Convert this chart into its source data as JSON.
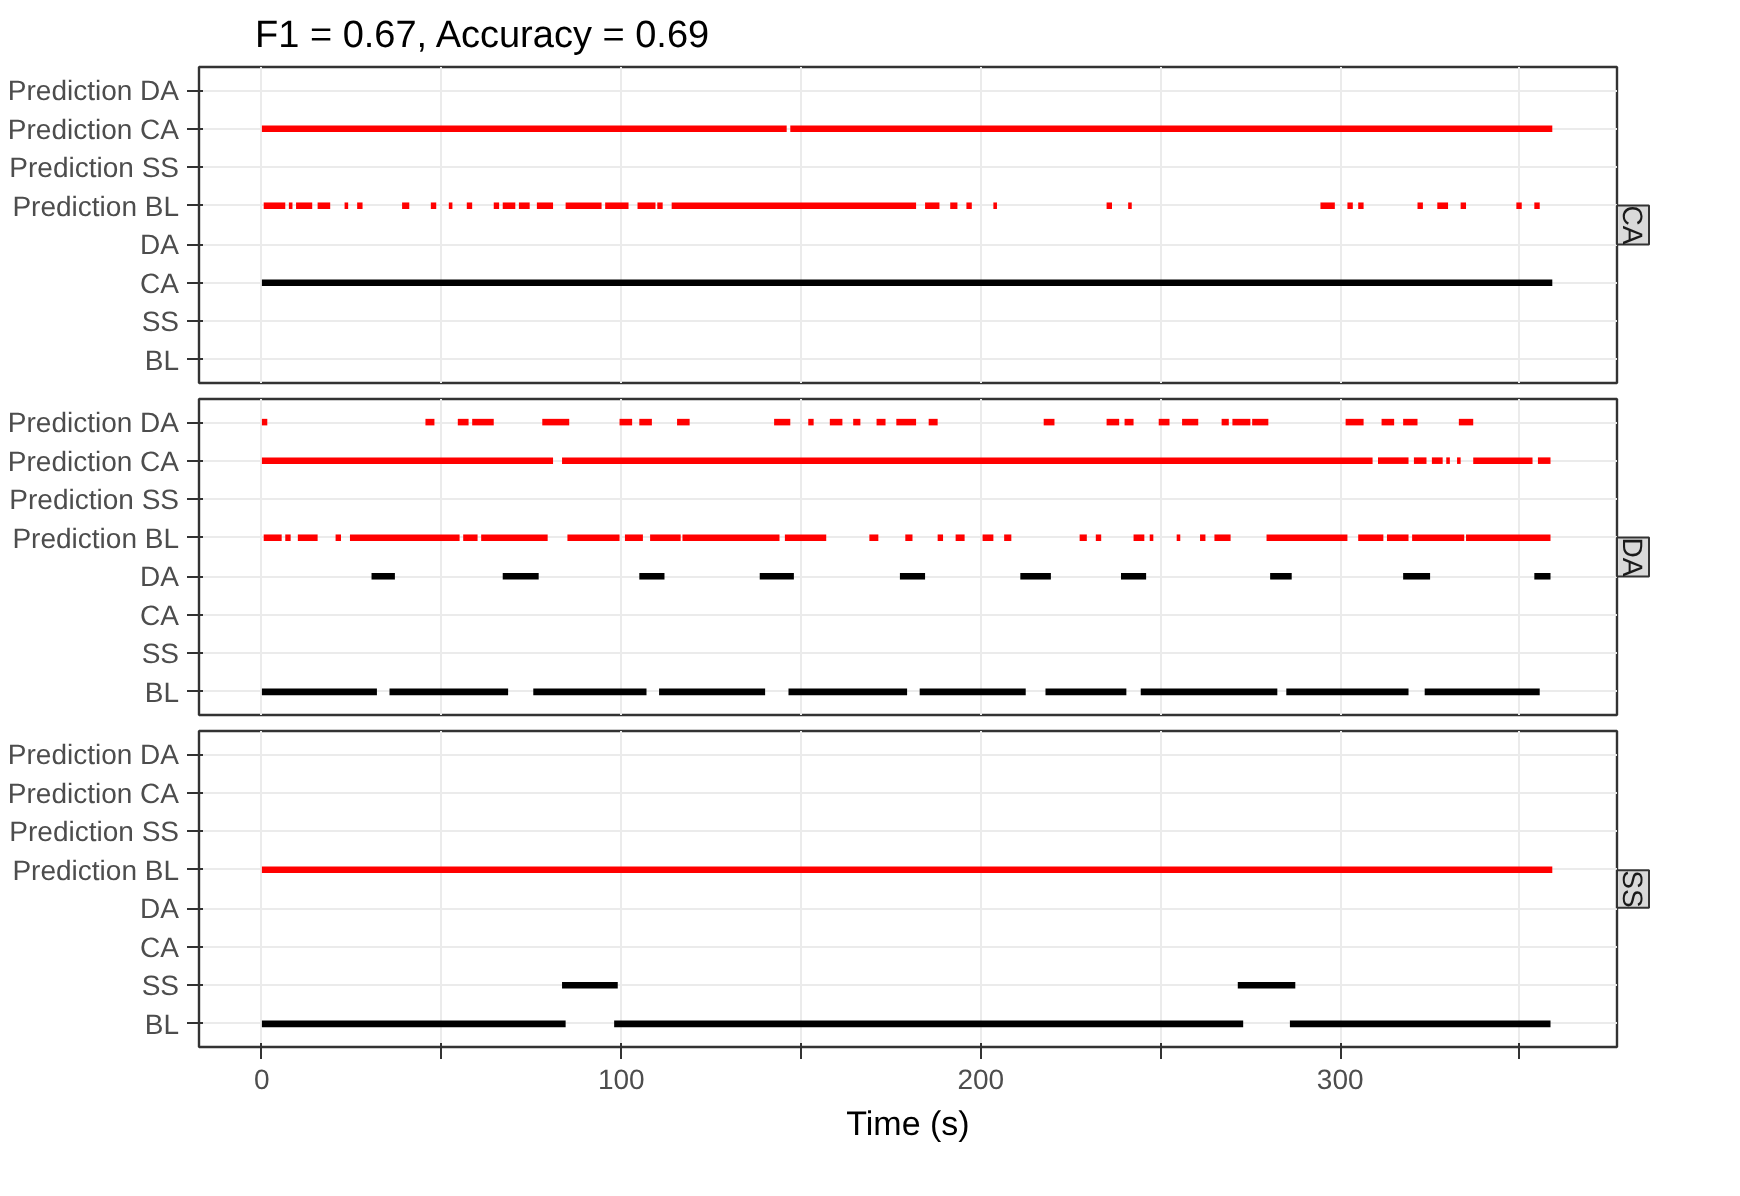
{
  "chart_data": [
    {
      "type": "bar",
      "orientation": "horizontal",
      "title": "F1 = 0.67, Accuracy = 0.69",
      "y2label": "CA",
      "categories": [
        "Prediction DA",
        "Prediction CA",
        "Prediction SS",
        "Prediction BL",
        "DA",
        "CA",
        "SS",
        "BL"
      ],
      "xlim": [
        -17.5,
        377
      ],
      "xticks": [
        0,
        {
          "value": 50,
          "label": null
        },
        100,
        {
          "value": 150,
          "label": null
        },
        200,
        {
          "value": 250,
          "label": null
        },
        300,
        {
          "value": 350,
          "label": null
        }
      ],
      "grid": true,
      "tick_labels": "y",
      "series": [
        {
          "color": "#ff0000",
          "base": [
            null,
            0,
            null,
            0.5,
            null,
            null,
            null,
            null
          ],
          "values": [
            null,
            146,
            null,
            6,
            null,
            null,
            null,
            null
          ]
        },
        {
          "color": "#ff0000",
          "base": [
            null,
            147,
            null,
            7.5,
            null,
            null,
            null,
            null
          ],
          "values": [
            null,
            212,
            null,
            1,
            null,
            null,
            null,
            null
          ]
        },
        {
          "color": "#ff0000",
          "base": [
            null,
            null,
            null,
            9.5,
            null,
            null,
            null,
            null
          ],
          "values": [
            null,
            null,
            null,
            4.5,
            null,
            null,
            null,
            null
          ]
        },
        {
          "color": "#ff0000",
          "base": [
            null,
            null,
            null,
            15.5,
            null,
            null,
            null,
            null
          ],
          "values": [
            null,
            null,
            null,
            3.5,
            null,
            null,
            null,
            null
          ]
        },
        {
          "color": "#ff0000",
          "base": [
            null,
            null,
            null,
            23,
            null,
            null,
            null,
            null
          ],
          "values": [
            null,
            null,
            null,
            1,
            null,
            null,
            null,
            null
          ]
        },
        {
          "color": "#ff0000",
          "base": [
            null,
            null,
            null,
            26.5,
            null,
            null,
            null,
            null
          ],
          "values": [
            null,
            null,
            null,
            1.5,
            null,
            null,
            null,
            null
          ]
        },
        {
          "color": "#ff0000",
          "base": [
            null,
            null,
            null,
            39,
            null,
            null,
            null,
            null
          ],
          "values": [
            null,
            null,
            null,
            2,
            null,
            null,
            null,
            null
          ]
        },
        {
          "color": "#ff0000",
          "base": [
            null,
            null,
            null,
            47,
            null,
            null,
            null,
            null
          ],
          "values": [
            null,
            null,
            null,
            1.5,
            null,
            null,
            null,
            null
          ]
        },
        {
          "color": "#ff0000",
          "base": [
            null,
            null,
            null,
            52,
            null,
            null,
            null,
            null
          ],
          "values": [
            null,
            null,
            null,
            1,
            null,
            null,
            null,
            null
          ]
        },
        {
          "color": "#ff0000",
          "base": [
            null,
            null,
            null,
            57,
            null,
            null,
            null,
            null
          ],
          "values": [
            null,
            null,
            null,
            1.5,
            null,
            null,
            null,
            null
          ]
        },
        {
          "color": "#ff0000",
          "base": [
            null,
            null,
            null,
            64.5,
            null,
            null,
            null,
            null
          ],
          "values": [
            null,
            null,
            null,
            1.5,
            null,
            null,
            null,
            null
          ]
        },
        {
          "color": "#ff0000",
          "base": [
            null,
            null,
            null,
            67,
            null,
            null,
            null,
            null
          ],
          "values": [
            null,
            null,
            null,
            3.5,
            null,
            null,
            null,
            null
          ]
        },
        {
          "color": "#ff0000",
          "base": [
            null,
            null,
            null,
            71.5,
            null,
            null,
            null,
            null
          ],
          "values": [
            null,
            null,
            null,
            3,
            null,
            null,
            null,
            null
          ]
        },
        {
          "color": "#ff0000",
          "base": [
            null,
            null,
            null,
            76.5,
            null,
            null,
            null,
            null
          ],
          "values": [
            null,
            null,
            null,
            4.5,
            null,
            null,
            null,
            null
          ]
        },
        {
          "color": "#ff0000",
          "base": [
            null,
            null,
            null,
            84.5,
            null,
            null,
            null,
            null
          ],
          "values": [
            null,
            null,
            null,
            10,
            null,
            null,
            null,
            null
          ]
        },
        {
          "color": "#ff0000",
          "base": [
            null,
            null,
            null,
            95.5,
            null,
            null,
            null,
            null
          ],
          "values": [
            null,
            null,
            null,
            6.5,
            null,
            null,
            null,
            null
          ]
        },
        {
          "color": "#ff0000",
          "base": [
            null,
            null,
            null,
            104.5,
            null,
            null,
            null,
            null
          ],
          "values": [
            null,
            null,
            null,
            5,
            null,
            null,
            null,
            null
          ]
        },
        {
          "color": "#ff0000",
          "base": [
            null,
            null,
            null,
            110,
            null,
            null,
            null,
            null
          ],
          "values": [
            null,
            null,
            null,
            1.5,
            null,
            null,
            null,
            null
          ]
        },
        {
          "color": "#ff0000",
          "base": [
            null,
            null,
            null,
            114,
            null,
            null,
            null,
            null
          ],
          "values": [
            null,
            null,
            null,
            68,
            null,
            null,
            null,
            null
          ]
        },
        {
          "color": "#ff0000",
          "base": [
            null,
            null,
            null,
            184.5,
            null,
            null,
            null,
            null
          ],
          "values": [
            null,
            null,
            null,
            4,
            null,
            null,
            null,
            null
          ]
        },
        {
          "color": "#ff0000",
          "base": [
            null,
            null,
            null,
            191.5,
            null,
            null,
            null,
            null
          ],
          "values": [
            null,
            null,
            null,
            2,
            null,
            null,
            null,
            null
          ]
        },
        {
          "color": "#ff0000",
          "base": [
            null,
            null,
            null,
            196,
            null,
            null,
            null,
            null
          ],
          "values": [
            null,
            null,
            null,
            1.5,
            null,
            null,
            null,
            null
          ]
        },
        {
          "color": "#ff0000",
          "base": [
            null,
            null,
            null,
            203.5,
            null,
            null,
            null,
            null
          ],
          "values": [
            null,
            null,
            null,
            1,
            null,
            null,
            null,
            null
          ]
        },
        {
          "color": "#ff0000",
          "base": [
            null,
            null,
            null,
            235,
            null,
            null,
            null,
            null
          ],
          "values": [
            null,
            null,
            null,
            1.5,
            null,
            null,
            null,
            null
          ]
        },
        {
          "color": "#ff0000",
          "base": [
            null,
            null,
            null,
            241,
            null,
            null,
            null,
            null
          ],
          "values": [
            null,
            null,
            null,
            1,
            null,
            null,
            null,
            null
          ]
        },
        {
          "color": "#ff0000",
          "base": [
            null,
            null,
            null,
            294.5,
            null,
            null,
            null,
            null
          ],
          "values": [
            null,
            null,
            null,
            4,
            null,
            null,
            null,
            null
          ]
        },
        {
          "color": "#ff0000",
          "base": [
            null,
            null,
            null,
            302,
            null,
            null,
            null,
            null
          ],
          "values": [
            null,
            null,
            null,
            1.5,
            null,
            null,
            null,
            null
          ]
        },
        {
          "color": "#ff0000",
          "base": [
            null,
            null,
            null,
            305,
            null,
            null,
            null,
            null
          ],
          "values": [
            null,
            null,
            null,
            1.5,
            null,
            null,
            null,
            null
          ]
        },
        {
          "color": "#ff0000",
          "base": [
            null,
            null,
            null,
            321.5,
            null,
            null,
            null,
            null
          ],
          "values": [
            null,
            null,
            null,
            1.5,
            null,
            null,
            null,
            null
          ]
        },
        {
          "color": "#ff0000",
          "base": [
            null,
            null,
            null,
            327,
            null,
            null,
            null,
            null
          ],
          "values": [
            null,
            null,
            null,
            3,
            null,
            null,
            null,
            null
          ]
        },
        {
          "color": "#ff0000",
          "base": [
            null,
            null,
            null,
            333.5,
            null,
            null,
            null,
            null
          ],
          "values": [
            null,
            null,
            null,
            1.5,
            null,
            null,
            null,
            null
          ]
        },
        {
          "color": "#ff0000",
          "base": [
            null,
            null,
            null,
            349,
            null,
            null,
            null,
            null
          ],
          "values": [
            null,
            null,
            null,
            1.5,
            null,
            null,
            null,
            null
          ]
        },
        {
          "color": "#ff0000",
          "base": [
            null,
            null,
            null,
            354,
            null,
            null,
            null,
            null
          ],
          "values": [
            null,
            null,
            null,
            1.5,
            null,
            null,
            null,
            null
          ]
        },
        {
          "color": "#000000",
          "base": [
            null,
            null,
            null,
            null,
            null,
            0,
            null,
            null
          ],
          "values": [
            null,
            null,
            null,
            null,
            null,
            359,
            null,
            null
          ]
        }
      ]
    },
    {
      "type": "bar",
      "orientation": "horizontal",
      "y2label": "DA",
      "categories": [
        "Prediction DA",
        "Prediction CA",
        "Prediction SS",
        "Prediction BL",
        "DA",
        "CA",
        "SS",
        "BL"
      ],
      "xlim": [
        -17.5,
        377
      ],
      "xticks": [
        0,
        {
          "value": 50,
          "label": null
        },
        100,
        {
          "value": 150,
          "label": null
        },
        200,
        {
          "value": 250,
          "label": null
        },
        300,
        {
          "value": 350,
          "label": null
        }
      ],
      "grid": true,
      "tick_labels": "y",
      "series": [
        {
          "color": "#ff0000",
          "base": [
            0,
            0,
            null,
            0.5,
            null,
            null,
            null,
            null
          ],
          "values": [
            1.5,
            81,
            null,
            5,
            null,
            null,
            null,
            null
          ]
        },
        {
          "color": "#ff0000",
          "base": [
            45.5,
            83.5,
            null,
            6.5,
            null,
            null,
            null,
            null
          ],
          "values": [
            2.5,
            225.5,
            null,
            1.5,
            null,
            null,
            null,
            null
          ]
        },
        {
          "color": "#ff0000",
          "base": [
            54.5,
            310.5,
            null,
            10,
            null,
            null,
            null,
            null
          ],
          "values": [
            3,
            8.5,
            null,
            5.5,
            null,
            null,
            null,
            null
          ]
        },
        {
          "color": "#ff0000",
          "base": [
            58.5,
            320.5,
            null,
            20.5,
            null,
            null,
            null,
            null
          ],
          "values": [
            6,
            3.5,
            null,
            1.5,
            null,
            null,
            null,
            null
          ]
        },
        {
          "color": "#ff0000",
          "base": [
            78,
            325.5,
            null,
            24.5,
            null,
            null,
            null,
            null
          ],
          "values": [
            7.5,
            3,
            null,
            30.5,
            null,
            null,
            null,
            null
          ]
        },
        {
          "color": "#ff0000",
          "base": [
            99.5,
            329.5,
            null,
            56,
            null,
            null,
            null,
            null
          ],
          "values": [
            3.5,
            1,
            null,
            4,
            null,
            null,
            null,
            null
          ]
        },
        {
          "color": "#ff0000",
          "base": [
            105,
            332.5,
            null,
            61,
            null,
            null,
            null,
            null
          ],
          "values": [
            3.5,
            1,
            null,
            18.5,
            null,
            null,
            null,
            null
          ]
        },
        {
          "color": "#ff0000",
          "base": [
            115.5,
            337,
            null,
            85,
            null,
            null,
            null,
            null
          ],
          "values": [
            3.5,
            16.5,
            null,
            14.5,
            null,
            null,
            null,
            null
          ]
        },
        {
          "color": "#ff0000",
          "base": [
            142.5,
            355,
            null,
            101,
            null,
            null,
            null,
            null
          ],
          "values": [
            4.5,
            3.5,
            null,
            5,
            null,
            null,
            null,
            null
          ]
        },
        {
          "color": "#ff0000",
          "base": [
            152,
            null,
            null,
            108,
            null,
            null,
            null,
            null
          ],
          "values": [
            1.5,
            null,
            null,
            8.5,
            null,
            null,
            null,
            null
          ]
        },
        {
          "color": "#ff0000",
          "base": [
            158,
            null,
            null,
            117,
            null,
            null,
            null,
            null
          ],
          "values": [
            3.5,
            null,
            null,
            27,
            null,
            null,
            null,
            null
          ]
        },
        {
          "color": "#ff0000",
          "base": [
            164.5,
            null,
            null,
            145.5,
            null,
            null,
            null,
            null
          ],
          "values": [
            2,
            null,
            null,
            11.5,
            null,
            null,
            null,
            null
          ]
        },
        {
          "color": "#ff0000",
          "base": [
            171,
            null,
            null,
            169,
            null,
            null,
            null,
            null
          ],
          "values": [
            2.5,
            null,
            null,
            2.5,
            null,
            null,
            null,
            null
          ]
        },
        {
          "color": "#ff0000",
          "base": [
            176.5,
            null,
            null,
            179,
            null,
            null,
            null,
            null
          ],
          "values": [
            5.5,
            null,
            null,
            2,
            null,
            null,
            null,
            null
          ]
        },
        {
          "color": "#ff0000",
          "base": [
            185.5,
            null,
            null,
            188,
            null,
            null,
            null,
            null
          ],
          "values": [
            2.5,
            null,
            null,
            1.5,
            null,
            null,
            null,
            null
          ]
        },
        {
          "color": "#ff0000",
          "base": [
            217.5,
            null,
            null,
            193,
            null,
            null,
            null,
            null
          ],
          "values": [
            3,
            null,
            null,
            2.5,
            null,
            null,
            null,
            null
          ]
        },
        {
          "color": "#ff0000",
          "base": [
            235,
            null,
            null,
            200.5,
            null,
            null,
            null,
            null
          ],
          "values": [
            3.5,
            null,
            null,
            3,
            null,
            null,
            null,
            null
          ]
        },
        {
          "color": "#ff0000",
          "base": [
            240,
            null,
            null,
            206.5,
            null,
            null,
            null,
            null
          ],
          "values": [
            2.5,
            null,
            null,
            2,
            null,
            null,
            null,
            null
          ]
        },
        {
          "color": "#ff0000",
          "base": [
            249.5,
            null,
            null,
            227.5,
            null,
            null,
            null,
            null
          ],
          "values": [
            3,
            null,
            null,
            2,
            null,
            null,
            null,
            null
          ]
        },
        {
          "color": "#ff0000",
          "base": [
            256,
            null,
            null,
            232,
            null,
            null,
            null,
            null
          ],
          "values": [
            4.5,
            null,
            null,
            1.5,
            null,
            null,
            null,
            null
          ]
        },
        {
          "color": "#ff0000",
          "base": [
            267,
            null,
            null,
            242.5,
            null,
            null,
            null,
            null
          ],
          "values": [
            2,
            null,
            null,
            3,
            null,
            null,
            null,
            null
          ]
        },
        {
          "color": "#ff0000",
          "base": [
            270,
            null,
            null,
            247,
            null,
            null,
            null,
            null
          ],
          "values": [
            5,
            null,
            null,
            1,
            null,
            null,
            null,
            null
          ]
        },
        {
          "color": "#ff0000",
          "base": [
            275.5,
            null,
            null,
            254.5,
            null,
            null,
            null,
            null
          ],
          "values": [
            4.5,
            null,
            null,
            1,
            null,
            null,
            null,
            null
          ]
        },
        {
          "color": "#ff0000",
          "base": [
            301.5,
            null,
            null,
            261,
            null,
            null,
            null,
            null
          ],
          "values": [
            5,
            null,
            null,
            1.5,
            null,
            null,
            null,
            null
          ]
        },
        {
          "color": "#ff0000",
          "base": [
            311.5,
            null,
            null,
            265,
            null,
            null,
            null,
            null
          ],
          "values": [
            3.5,
            null,
            null,
            4.5,
            null,
            null,
            null,
            null
          ]
        },
        {
          "color": "#ff0000",
          "base": [
            317.5,
            null,
            null,
            279.5,
            null,
            null,
            null,
            null
          ],
          "values": [
            4,
            null,
            null,
            22.5,
            null,
            null,
            null,
            null
          ]
        },
        {
          "color": "#ff0000",
          "base": [
            333,
            null,
            null,
            305,
            null,
            null,
            null,
            null
          ],
          "values": [
            4,
            null,
            null,
            7,
            null,
            null,
            null,
            null
          ]
        },
        {
          "color": "#ff0000",
          "base": [
            null,
            null,
            null,
            313,
            null,
            null,
            null,
            null
          ],
          "values": [
            null,
            null,
            null,
            6,
            null,
            null,
            null,
            null
          ]
        },
        {
          "color": "#ff0000",
          "base": [
            null,
            null,
            null,
            320,
            null,
            null,
            null,
            null
          ],
          "values": [
            null,
            null,
            null,
            14.5,
            null,
            null,
            null,
            null
          ]
        },
        {
          "color": "#ff0000",
          "base": [
            null,
            null,
            null,
            335,
            null,
            null,
            null,
            null
          ],
          "values": [
            null,
            null,
            null,
            23.5,
            null,
            null,
            null,
            null
          ]
        },
        {
          "color": "#000000",
          "base": [
            null,
            null,
            null,
            null,
            30.5,
            null,
            null,
            0
          ],
          "values": [
            null,
            null,
            null,
            null,
            6.5,
            null,
            null,
            32
          ]
        },
        {
          "color": "#000000",
          "base": [
            null,
            null,
            null,
            null,
            67,
            null,
            null,
            35.5
          ],
          "values": [
            null,
            null,
            null,
            null,
            10,
            null,
            null,
            33
          ]
        },
        {
          "color": "#000000",
          "base": [
            null,
            null,
            null,
            null,
            105,
            null,
            null,
            75.5
          ],
          "values": [
            null,
            null,
            null,
            null,
            7,
            null,
            null,
            31.5
          ]
        },
        {
          "color": "#000000",
          "base": [
            null,
            null,
            null,
            null,
            138.5,
            null,
            null,
            110.5
          ],
          "values": [
            null,
            null,
            null,
            null,
            9.5,
            null,
            null,
            29.5
          ]
        },
        {
          "color": "#000000",
          "base": [
            null,
            null,
            null,
            null,
            177.5,
            null,
            null,
            146.5
          ],
          "values": [
            null,
            null,
            null,
            null,
            7,
            null,
            null,
            33
          ]
        },
        {
          "color": "#000000",
          "base": [
            null,
            null,
            null,
            null,
            211,
            null,
            null,
            183
          ],
          "values": [
            null,
            null,
            null,
            null,
            8.5,
            null,
            null,
            29.5
          ]
        },
        {
          "color": "#000000",
          "base": [
            null,
            null,
            null,
            null,
            239,
            null,
            null,
            218
          ],
          "values": [
            null,
            null,
            null,
            null,
            7,
            null,
            null,
            22.5
          ]
        },
        {
          "color": "#000000",
          "base": [
            null,
            null,
            null,
            null,
            280.5,
            null,
            null,
            244.5
          ],
          "values": [
            null,
            null,
            null,
            null,
            6,
            null,
            null,
            38
          ]
        },
        {
          "color": "#000000",
          "base": [
            null,
            null,
            null,
            null,
            317.5,
            null,
            null,
            285
          ],
          "values": [
            null,
            null,
            null,
            null,
            7.5,
            null,
            null,
            34
          ]
        },
        {
          "color": "#000000",
          "base": [
            null,
            null,
            null,
            null,
            354,
            null,
            null,
            323.5
          ],
          "values": [
            null,
            null,
            null,
            null,
            4.5,
            null,
            null,
            32
          ]
        }
      ]
    },
    {
      "type": "bar",
      "orientation": "horizontal",
      "y2label": "SS",
      "xlabel": "Time (s)",
      "categories": [
        "Prediction DA",
        "Prediction CA",
        "Prediction SS",
        "Prediction BL",
        "DA",
        "CA",
        "SS",
        "BL"
      ],
      "xlim": [
        -17.5,
        377
      ],
      "xticks": [
        0,
        {
          "value": 50,
          "label": null
        },
        100,
        {
          "value": 150,
          "label": null
        },
        200,
        {
          "value": 250,
          "label": null
        },
        300,
        {
          "value": 350,
          "label": null
        }
      ],
      "grid": true,
      "series": [
        {
          "color": "#ff0000",
          "base": [
            null,
            null,
            null,
            0,
            null,
            null,
            null,
            null
          ],
          "values": [
            null,
            null,
            null,
            359,
            null,
            null,
            null,
            null
          ]
        },
        {
          "color": "#000000",
          "base": [
            null,
            null,
            null,
            null,
            null,
            null,
            83.5,
            0
          ],
          "values": [
            null,
            null,
            null,
            null,
            null,
            null,
            15.5,
            84.5
          ]
        },
        {
          "color": "#000000",
          "base": [
            null,
            null,
            null,
            null,
            null,
            null,
            271.5,
            98
          ],
          "values": [
            null,
            null,
            null,
            null,
            null,
            null,
            16,
            175
          ]
        },
        {
          "color": "#000000",
          "base": [
            null,
            null,
            null,
            null,
            null,
            null,
            null,
            286
          ],
          "values": [
            null,
            null,
            null,
            null,
            null,
            null,
            null,
            72.5
          ]
        }
      ]
    }
  ]
}
